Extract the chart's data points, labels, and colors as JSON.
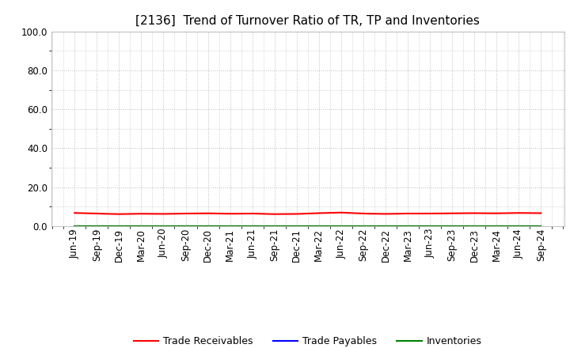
{
  "title": "[2136]  Trend of Turnover Ratio of TR, TP and Inventories",
  "title_fontsize": 11,
  "title_fontweight": "normal",
  "ylim": [
    0.0,
    100.0
  ],
  "yticks": [
    0.0,
    20.0,
    40.0,
    60.0,
    80.0,
    100.0
  ],
  "background_color": "#ffffff",
  "grid_color": "#bbbbbb",
  "series": [
    {
      "label": "Trade Receivables",
      "color": "#ff0000",
      "values": [
        6.8,
        6.5,
        6.2,
        6.4,
        6.3,
        6.5,
        6.6,
        6.4,
        6.5,
        6.2,
        6.3,
        6.7,
        7.0,
        6.5,
        6.3,
        6.5,
        6.5,
        6.6,
        6.7,
        6.6,
        6.8,
        6.7
      ]
    },
    {
      "label": "Trade Payables",
      "color": "#0000ff",
      "values": [
        0.1,
        0.1,
        0.1,
        0.1,
        0.1,
        0.1,
        0.1,
        0.1,
        0.1,
        0.1,
        0.1,
        0.1,
        0.1,
        0.1,
        0.1,
        0.1,
        0.1,
        0.1,
        0.1,
        0.1,
        0.1,
        0.1
      ]
    },
    {
      "label": "Inventories",
      "color": "#008000",
      "values": [
        0.1,
        0.1,
        0.1,
        0.1,
        0.1,
        0.1,
        0.1,
        0.1,
        0.1,
        0.1,
        0.1,
        0.1,
        0.1,
        0.1,
        0.1,
        0.1,
        0.1,
        0.1,
        0.1,
        0.1,
        0.1,
        0.1
      ]
    }
  ],
  "x_labels": [
    "Jun-19",
    "Sep-19",
    "Dec-19",
    "Mar-20",
    "Jun-20",
    "Sep-20",
    "Dec-20",
    "Mar-21",
    "Jun-21",
    "Sep-21",
    "Dec-21",
    "Mar-22",
    "Jun-22",
    "Sep-22",
    "Dec-22",
    "Mar-23",
    "Jun-23",
    "Sep-23",
    "Dec-23",
    "Mar-24",
    "Jun-24",
    "Sep-24"
  ],
  "line_width": 1.5,
  "tick_fontsize": 8.5,
  "legend_fontsize": 9
}
